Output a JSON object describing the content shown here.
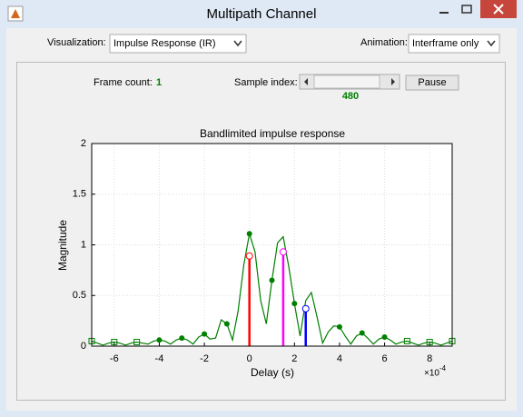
{
  "window": {
    "title": "Multipath Channel"
  },
  "controls": {
    "visualization_label": "Visualization:",
    "visualization_value": "Impulse Response (IR)",
    "animation_label": "Animation:",
    "animation_value": "Interframe only",
    "frame_count_label": "Frame count:",
    "frame_count": 1,
    "sample_index_label": "Sample index:",
    "sample_index": 480,
    "button": "Pause"
  },
  "chart_data": {
    "type": "line",
    "title": "Bandlimited impulse response",
    "x_label": "Delay (s)",
    "y_label": "Magnitude",
    "x_exponent_base": "×10",
    "x_exponent": "-4",
    "xlim": [
      -7,
      9
    ],
    "xticks": [
      -6,
      -4,
      -2,
      0,
      2,
      4,
      6,
      8
    ],
    "ylim": [
      0,
      2
    ],
    "yticks": [
      0,
      0.5,
      1,
      1.5,
      2
    ],
    "grid": true,
    "series": [
      {
        "type": "line",
        "color": "#007f00",
        "x": [
          -7,
          -6.75,
          -6.5,
          -6.25,
          -6,
          -5.75,
          -5.5,
          -5.25,
          -5,
          -4.75,
          -4.5,
          -4.25,
          -4,
          -3.75,
          -3.5,
          -3.25,
          -3,
          -2.75,
          -2.5,
          -2.25,
          -2,
          -1.75,
          -1.5,
          -1.25,
          -1,
          -0.75,
          -0.5,
          -0.25,
          0,
          0.25,
          0.5,
          0.75,
          1,
          1.25,
          1.5,
          1.75,
          2,
          2.25,
          2.5,
          2.75,
          3,
          3.25,
          3.5,
          3.75,
          4,
          4.25,
          4.5,
          4.75,
          5,
          5.25,
          5.5,
          5.75,
          6,
          6.25,
          6.5,
          6.75,
          7,
          7.25,
          7.5,
          7.75,
          8,
          8.25,
          8.5,
          8.75,
          9
        ],
        "values": [
          0.05,
          0.03,
          0.01,
          0.03,
          0.04,
          0.03,
          0.01,
          0.03,
          0.04,
          0.03,
          0.02,
          0.05,
          0.06,
          0.05,
          0.02,
          0.06,
          0.08,
          0.06,
          0.02,
          0.09,
          0.12,
          0.07,
          0.08,
          0.26,
          0.22,
          0.06,
          0.35,
          0.8,
          1.11,
          0.93,
          0.45,
          0.22,
          0.65,
          1.02,
          1.08,
          0.78,
          0.42,
          0.1,
          0.45,
          0.53,
          0.29,
          0.03,
          0.14,
          0.2,
          0.19,
          0.1,
          0.02,
          0.1,
          0.13,
          0.08,
          0.02,
          0.07,
          0.09,
          0.06,
          0.02,
          0.04,
          0.05,
          0.03,
          0.01,
          0.03,
          0.04,
          0.03,
          0.01,
          0.03,
          0.05
        ]
      },
      {
        "type": "scatter",
        "marker": "dot",
        "color": "#007f00",
        "x": [
          -4,
          -3,
          -2,
          -1,
          0,
          1,
          2,
          4,
          5,
          6
        ],
        "values": [
          0.06,
          0.08,
          0.12,
          0.22,
          1.11,
          0.65,
          0.42,
          0.19,
          0.13,
          0.09
        ]
      },
      {
        "type": "scatter",
        "marker": "square",
        "color": "#007f00",
        "x": [
          -7,
          -6,
          -5,
          7,
          8,
          9
        ],
        "values": [
          0.05,
          0.04,
          0.04,
          0.05,
          0.04,
          0.05
        ]
      },
      {
        "type": "stem",
        "color": "#ff0000",
        "x": [
          0
        ],
        "values": [
          0.89
        ]
      },
      {
        "type": "stem",
        "color": "#ff00ff",
        "x": [
          1.5
        ],
        "values": [
          0.93
        ]
      },
      {
        "type": "stem",
        "color": "#0000ff",
        "x": [
          2.5
        ],
        "values": [
          0.37
        ]
      }
    ]
  }
}
